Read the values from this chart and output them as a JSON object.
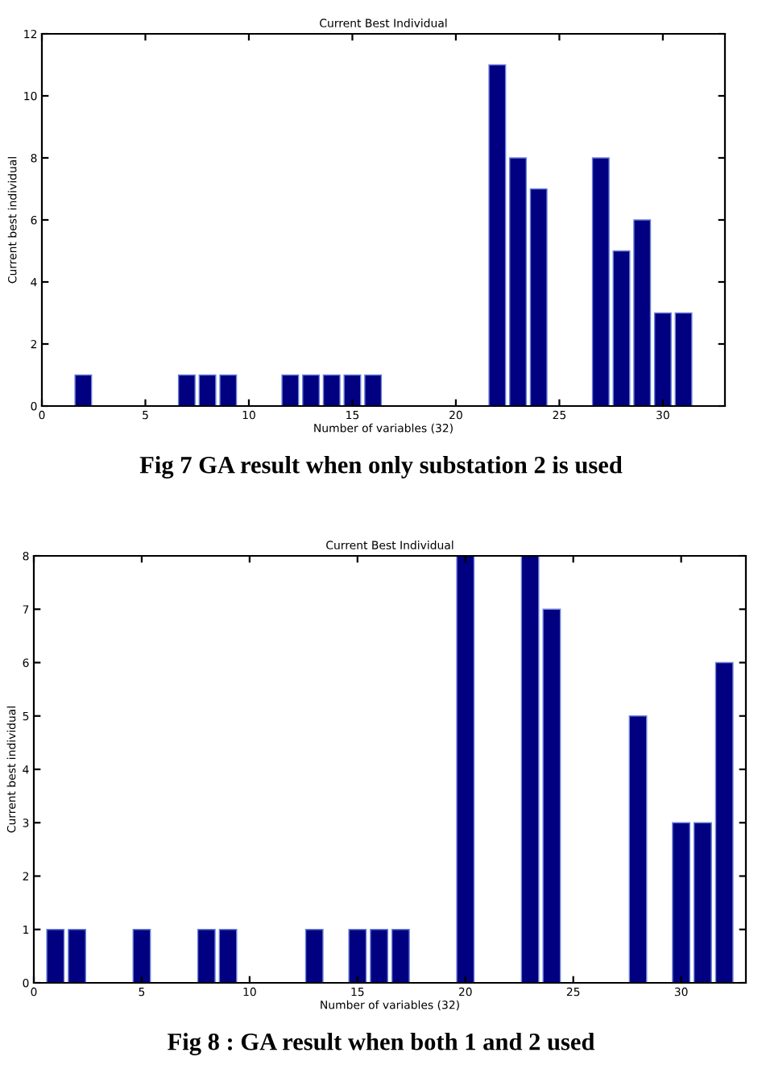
{
  "chart_data": [
    {
      "type": "bar",
      "title": "Current Best Individual",
      "xlabel": "Number of variables (32)",
      "ylabel": "Current best individual",
      "x": [
        2,
        7,
        8,
        9,
        12,
        13,
        14,
        15,
        16,
        22,
        23,
        24,
        27,
        28,
        29,
        30,
        31
      ],
      "values": [
        1,
        1,
        1,
        1,
        1,
        1,
        1,
        1,
        1,
        11,
        8,
        7,
        8,
        5,
        6,
        3,
        3
      ],
      "color": "#000080",
      "xlim": [
        0,
        33
      ],
      "xticks": [
        0,
        5,
        10,
        15,
        20,
        25,
        30
      ],
      "ylim": [
        0,
        12
      ],
      "yticks": [
        0,
        2,
        4,
        6,
        8,
        10,
        12
      ],
      "annotations": [
        "Fig 7 GA result when only substation 2 is used"
      ]
    },
    {
      "type": "bar",
      "title": "Current Best Individual",
      "xlabel": "Number of variables (32)",
      "ylabel": "Current best individual",
      "x": [
        1,
        2,
        5,
        8,
        9,
        13,
        15,
        16,
        17,
        20,
        23,
        24,
        28,
        30,
        31,
        32
      ],
      "values": [
        1,
        1,
        1,
        1,
        1,
        1,
        1,
        1,
        1,
        8,
        8,
        7,
        5,
        3,
        3,
        6
      ],
      "color": "#000080",
      "xlim": [
        0,
        33
      ],
      "xticks": [
        0,
        5,
        10,
        15,
        20,
        25,
        30
      ],
      "ylim": [
        0,
        8
      ],
      "yticks": [
        0,
        1,
        2,
        3,
        4,
        5,
        6,
        7,
        8
      ],
      "annotations": [
        "Fig 8 : GA result when both 1 and 2 used"
      ]
    }
  ]
}
